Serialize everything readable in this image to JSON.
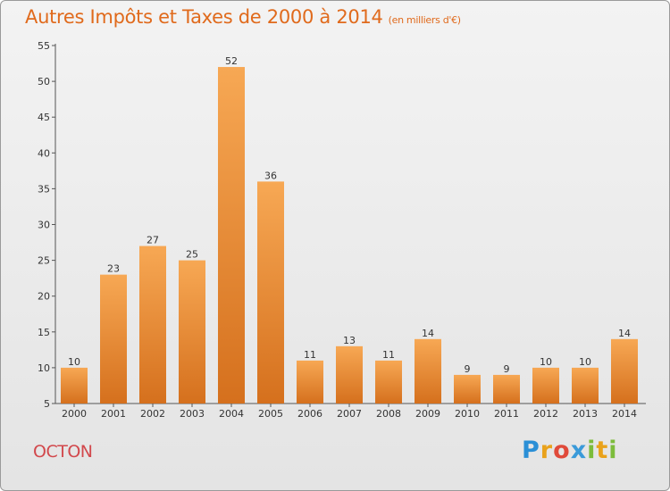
{
  "header": {
    "title": "Autres Impôts et Taxes de 2000 à 2014",
    "unit": "(en milliers d'€)"
  },
  "footer": {
    "place": "OCTON",
    "logo": "Proxiti"
  },
  "colors": {
    "bar_light": "#f6a44f",
    "bar_dark": "#d8731f",
    "title": "#e06a1c",
    "place": "#d2484c"
  },
  "chart_data": {
    "type": "bar",
    "title": "Autres Impôts et Taxes de 2000 à 2014",
    "subtitle": "(en milliers d'€)",
    "xlabel": "",
    "ylabel": "",
    "categories": [
      "2000",
      "2001",
      "2002",
      "2003",
      "2004",
      "2005",
      "2006",
      "2007",
      "2008",
      "2009",
      "2010",
      "2011",
      "2012",
      "2013",
      "2014"
    ],
    "values": [
      10,
      23,
      27,
      25,
      52,
      36,
      11,
      13,
      11,
      14,
      9,
      9,
      10,
      10,
      14
    ],
    "ylim": [
      5,
      55
    ],
    "yticks": [
      5,
      10,
      15,
      20,
      25,
      30,
      35,
      40,
      45,
      50,
      55
    ],
    "grid": false,
    "data_labels": true
  }
}
